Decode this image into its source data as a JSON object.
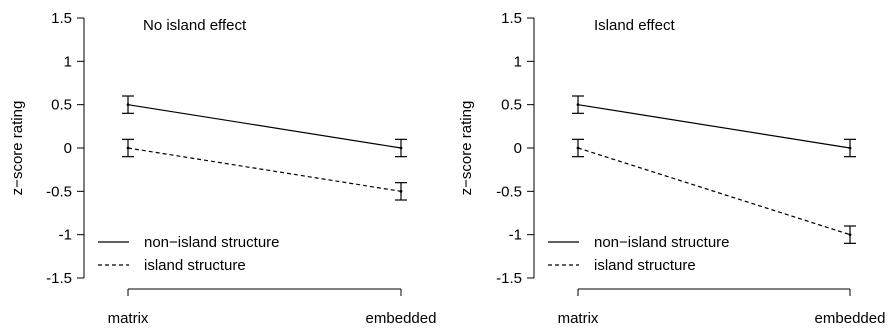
{
  "chart_data": [
    {
      "type": "line",
      "title": "No island effect",
      "xlabel": "",
      "ylabel": "z−score rating",
      "categories": [
        "matrix",
        "embedded"
      ],
      "ylim": [
        -1.5,
        1.5
      ],
      "yticks": [
        "1.5",
        "1",
        "0.5",
        "0",
        "-0.5",
        "-1",
        "-1.5"
      ],
      "grid": false,
      "legend_position": "bottom-left",
      "series": [
        {
          "name": "non−island structure",
          "line_style": "solid",
          "values": [
            0.5,
            0.0
          ],
          "error": [
            0.1,
            0.1
          ]
        },
        {
          "name": "island structure",
          "line_style": "dashed",
          "values": [
            0.0,
            -0.5
          ],
          "error": [
            0.1,
            0.1
          ]
        }
      ]
    },
    {
      "type": "line",
      "title": "Island effect",
      "xlabel": "",
      "ylabel": "z−score rating",
      "categories": [
        "matrix",
        "embedded"
      ],
      "ylim": [
        -1.5,
        1.5
      ],
      "yticks": [
        "1.5",
        "1",
        "0.5",
        "0",
        "-0.5",
        "-1",
        "-1.5"
      ],
      "grid": false,
      "legend_position": "bottom-left",
      "series": [
        {
          "name": "non−island structure",
          "line_style": "solid",
          "values": [
            0.5,
            0.0
          ],
          "error": [
            0.1,
            0.1
          ]
        },
        {
          "name": "island structure",
          "line_style": "dashed",
          "values": [
            0.0,
            -1.0
          ],
          "error": [
            0.1,
            0.1
          ]
        }
      ]
    }
  ]
}
